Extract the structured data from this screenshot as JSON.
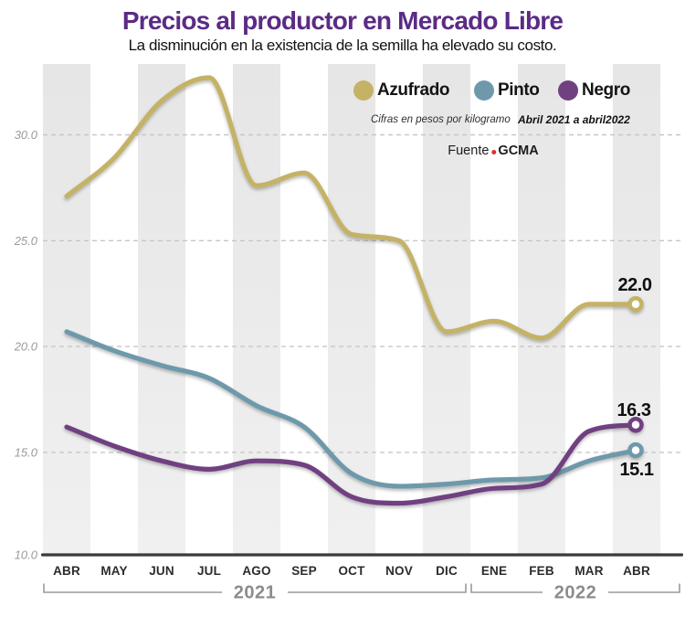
{
  "title": "Precios al productor en Mercado Libre",
  "subtitle": "La disminución en la existencia de la semilla ha elevado su costo.",
  "legend": [
    {
      "label": "Azufrado",
      "color": "#c4b266"
    },
    {
      "label": "Pinto",
      "color": "#6d99ab"
    },
    {
      "label": "Negro",
      "color": "#6f4181"
    }
  ],
  "annotations": {
    "units": "Cifras en pesos por kilogramo",
    "period": "Abril 2021 a abril2022",
    "source_prefix": "Fuente",
    "source_name": "GCMA"
  },
  "end_labels": {
    "azufrado": "22.0",
    "negro": "16.3",
    "pinto": "15.1"
  },
  "colors": {
    "title": "#5b2b85",
    "azufrado_line": "#c4b266",
    "pinto_line": "#6d99ab",
    "negro_line": "#6f4181",
    "source_dot": "#e03131",
    "grid": "#c7c7c7",
    "axis": "#3a3a3a",
    "band_gray": "#e9e9e9"
  },
  "chart_data": {
    "type": "line",
    "title": "Precios al productor en Mercado Libre",
    "subtitle": "La disminución en la existencia de la semilla ha elevado su costo.",
    "units_note": "Cifras en pesos por kilogramo",
    "period_note": "Abril 2021 a abril2022",
    "source": "Fuente GCMA",
    "categories": [
      "ABR",
      "MAY",
      "JUN",
      "JUL",
      "AGO",
      "SEP",
      "OCT",
      "NOV",
      "DIC",
      "ENE",
      "FEB",
      "MAR",
      "ABR"
    ],
    "year_groups": [
      {
        "label": "2021",
        "from": 0,
        "to": 8
      },
      {
        "label": "2022",
        "from": 9,
        "to": 12
      }
    ],
    "series": [
      {
        "name": "Azufrado",
        "color": "#c4b266",
        "values": [
          27.1,
          28.9,
          31.6,
          32.7,
          27.6,
          28.2,
          25.3,
          25.0,
          20.7,
          21.2,
          20.4,
          22.0,
          22.0
        ],
        "end_label": "22.0"
      },
      {
        "name": "Pinto",
        "color": "#6d99ab",
        "values": [
          20.7,
          19.8,
          19.1,
          18.5,
          17.2,
          16.2,
          14.0,
          13.4,
          13.5,
          13.7,
          13.8,
          14.6,
          15.1
        ],
        "end_label": "15.1"
      },
      {
        "name": "Negro",
        "color": "#6f4181",
        "values": [
          16.2,
          15.3,
          14.6,
          14.2,
          14.6,
          14.4,
          12.9,
          12.6,
          12.9,
          13.3,
          13.5,
          16.0,
          16.3
        ],
        "end_label": "16.3"
      }
    ],
    "ylim": [
      10.0,
      33.5
    ],
    "yticks": [
      30.0,
      25.0,
      20.0,
      15.0,
      10.0
    ],
    "ytick_labels": [
      "30.0",
      "25.0",
      "20.0",
      "15.0",
      "10.0"
    ],
    "grid": "horizontal-dashed",
    "legend_position": "top-right",
    "background": "alternating-vertical-month-bands"
  }
}
